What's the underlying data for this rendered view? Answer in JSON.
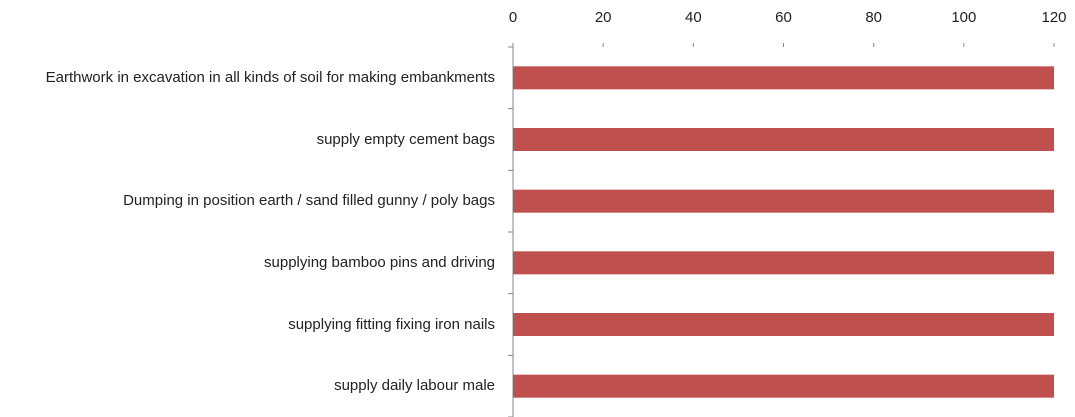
{
  "chart_data": {
    "type": "bar",
    "orientation": "horizontal",
    "categories": [
      "Earthwork in excavation in all kinds of soil for making embankments",
      "supply empty cement bags",
      "Dumping in position earth / sand filled gunny / poly bags",
      "supplying bamboo pins and driving",
      "supplying fitting fixing iron nails",
      "supply daily labour male"
    ],
    "values": [
      120,
      120,
      120,
      120,
      120,
      120
    ],
    "color": "#c0504d",
    "xlim": [
      0,
      120
    ],
    "xticks": [
      0,
      20,
      40,
      60,
      80,
      100,
      120
    ],
    "grid": false
  }
}
